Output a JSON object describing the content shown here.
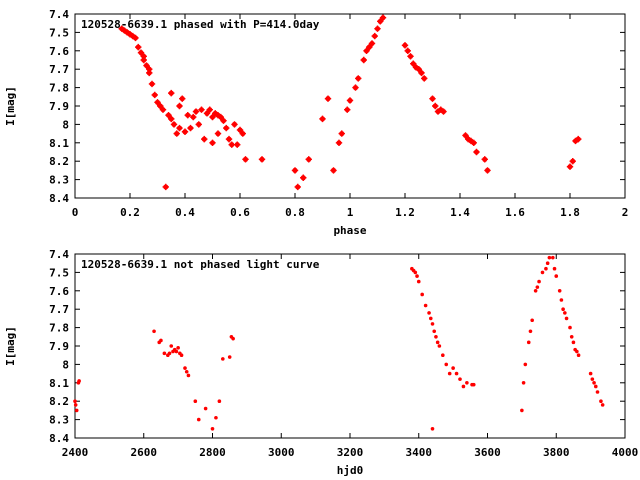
{
  "chart_data": [
    {
      "type": "scatter",
      "title": "120528-6639.1 phased with P=414.0day",
      "xlabel": "phase",
      "ylabel": "I[mag]",
      "xlim": [
        0,
        2
      ],
      "ylim": [
        7.4,
        8.4
      ],
      "y_inverted": true,
      "grid": false,
      "marker_color": "#ff0000",
      "xticks": [
        "0",
        "0.2",
        "0.4",
        "0.6",
        "0.8",
        "1",
        "1.2",
        "1.4",
        "1.6",
        "1.8",
        "2"
      ],
      "yticks": [
        "7.4",
        "7.5",
        "7.6",
        "7.7",
        "7.8",
        "7.9",
        "8",
        "8.1",
        "8.2",
        "8.3",
        "8.4"
      ],
      "x": [
        0.17,
        0.18,
        0.19,
        0.2,
        0.21,
        0.22,
        0.23,
        0.24,
        0.25,
        0.25,
        0.26,
        0.27,
        0.27,
        0.28,
        0.29,
        0.3,
        0.31,
        0.32,
        0.33,
        0.34,
        0.35,
        0.35,
        0.36,
        0.37,
        0.38,
        0.38,
        0.39,
        0.4,
        0.41,
        0.42,
        0.43,
        0.44,
        0.45,
        0.46,
        0.47,
        0.48,
        0.49,
        0.5,
        0.5,
        0.51,
        0.52,
        0.52,
        0.53,
        0.54,
        0.55,
        0.56,
        0.57,
        0.58,
        0.59,
        0.6,
        0.61,
        0.62,
        0.68,
        0.8,
        0.81,
        0.83,
        0.85,
        0.9,
        0.92,
        0.94,
        0.96,
        0.97,
        0.99,
        1.0,
        1.02,
        1.03,
        1.05,
        1.06,
        1.07,
        1.08,
        1.09,
        1.1,
        1.11,
        1.12,
        1.2,
        1.21,
        1.22,
        1.23,
        1.24,
        1.25,
        1.26,
        1.27,
        1.3,
        1.31,
        1.32,
        1.33,
        1.34,
        1.42,
        1.43,
        1.44,
        1.45,
        1.46,
        1.49,
        1.5,
        1.8,
        1.81,
        1.82,
        1.83
      ],
      "y": [
        7.48,
        7.49,
        7.5,
        7.51,
        7.52,
        7.53,
        7.58,
        7.61,
        7.63,
        7.65,
        7.68,
        7.7,
        7.72,
        7.78,
        7.84,
        7.88,
        7.9,
        7.92,
        8.34,
        7.95,
        7.83,
        7.97,
        8.0,
        8.05,
        7.9,
        8.02,
        7.86,
        8.04,
        7.95,
        8.02,
        7.96,
        7.93,
        8.0,
        7.92,
        8.08,
        7.94,
        7.92,
        7.96,
        8.1,
        7.94,
        7.95,
        8.05,
        7.96,
        7.98,
        8.02,
        8.08,
        8.11,
        8.0,
        8.11,
        8.03,
        8.05,
        8.19,
        8.19,
        8.25,
        8.34,
        8.29,
        8.19,
        7.97,
        7.86,
        8.25,
        8.1,
        8.05,
        7.92,
        7.87,
        7.8,
        7.75,
        7.65,
        7.6,
        7.58,
        7.56,
        7.52,
        7.48,
        7.44,
        7.42,
        7.57,
        7.6,
        7.63,
        7.67,
        7.69,
        7.7,
        7.72,
        7.75,
        7.86,
        7.9,
        7.93,
        7.92,
        7.93,
        8.06,
        8.08,
        8.09,
        8.1,
        8.15,
        8.19,
        8.25,
        8.23,
        8.2,
        8.09,
        8.08
      ]
    },
    {
      "type": "scatter",
      "title": "120528-6639.1 not phased light curve",
      "xlabel": "hjd0",
      "ylabel": "I[mag]",
      "xlim": [
        2400,
        4000
      ],
      "ylim": [
        7.4,
        8.4
      ],
      "y_inverted": true,
      "grid": false,
      "marker_color": "#ff0000",
      "xticks": [
        "2400",
        "2600",
        "2800",
        "3000",
        "3200",
        "3400",
        "3600",
        "3800",
        "4000"
      ],
      "yticks": [
        "7.4",
        "7.5",
        "7.6",
        "7.7",
        "7.8",
        "7.9",
        "8",
        "8.1",
        "8.2",
        "8.3",
        "8.4"
      ],
      "x": [
        2400,
        2402,
        2405,
        2410,
        2412,
        2630,
        2645,
        2650,
        2660,
        2670,
        2675,
        2680,
        2685,
        2690,
        2695,
        2700,
        2705,
        2710,
        2720,
        2725,
        2730,
        2750,
        2760,
        2780,
        2800,
        2810,
        2820,
        2830,
        2850,
        2855,
        2860,
        3380,
        3385,
        3390,
        3395,
        3400,
        3410,
        3420,
        3430,
        3435,
        3440,
        3445,
        3450,
        3455,
        3460,
        3470,
        3480,
        3490,
        3500,
        3510,
        3520,
        3530,
        3540,
        3555,
        3560,
        3440,
        3700,
        3705,
        3710,
        3720,
        3725,
        3730,
        3740,
        3745,
        3750,
        3760,
        3770,
        3775,
        3780,
        3790,
        3795,
        3800,
        3810,
        3815,
        3820,
        3825,
        3830,
        3840,
        3845,
        3850,
        3855,
        3860,
        3865,
        3900,
        3905,
        3910,
        3915,
        3920,
        3930,
        3935
      ],
      "y": [
        8.2,
        8.22,
        8.25,
        8.1,
        8.09,
        7.82,
        7.88,
        7.87,
        7.94,
        7.95,
        7.94,
        7.9,
        7.93,
        7.92,
        7.93,
        7.91,
        7.94,
        7.95,
        8.02,
        8.04,
        8.06,
        8.2,
        8.3,
        8.24,
        8.35,
        8.29,
        8.2,
        7.97,
        7.96,
        7.85,
        7.86,
        7.48,
        7.49,
        7.5,
        7.52,
        7.55,
        7.62,
        7.68,
        7.72,
        7.75,
        7.78,
        7.82,
        7.85,
        7.88,
        7.9,
        7.95,
        8.0,
        8.05,
        8.02,
        8.05,
        8.08,
        8.12,
        8.1,
        8.11,
        8.11,
        8.35,
        8.25,
        8.1,
        8.0,
        7.88,
        7.82,
        7.76,
        7.6,
        7.58,
        7.55,
        7.5,
        7.48,
        7.45,
        7.42,
        7.42,
        7.48,
        7.52,
        7.6,
        7.65,
        7.7,
        7.72,
        7.75,
        7.8,
        7.85,
        7.88,
        7.92,
        7.93,
        7.95,
        8.05,
        8.08,
        8.1,
        8.12,
        8.15,
        8.2,
        8.22
      ]
    }
  ]
}
